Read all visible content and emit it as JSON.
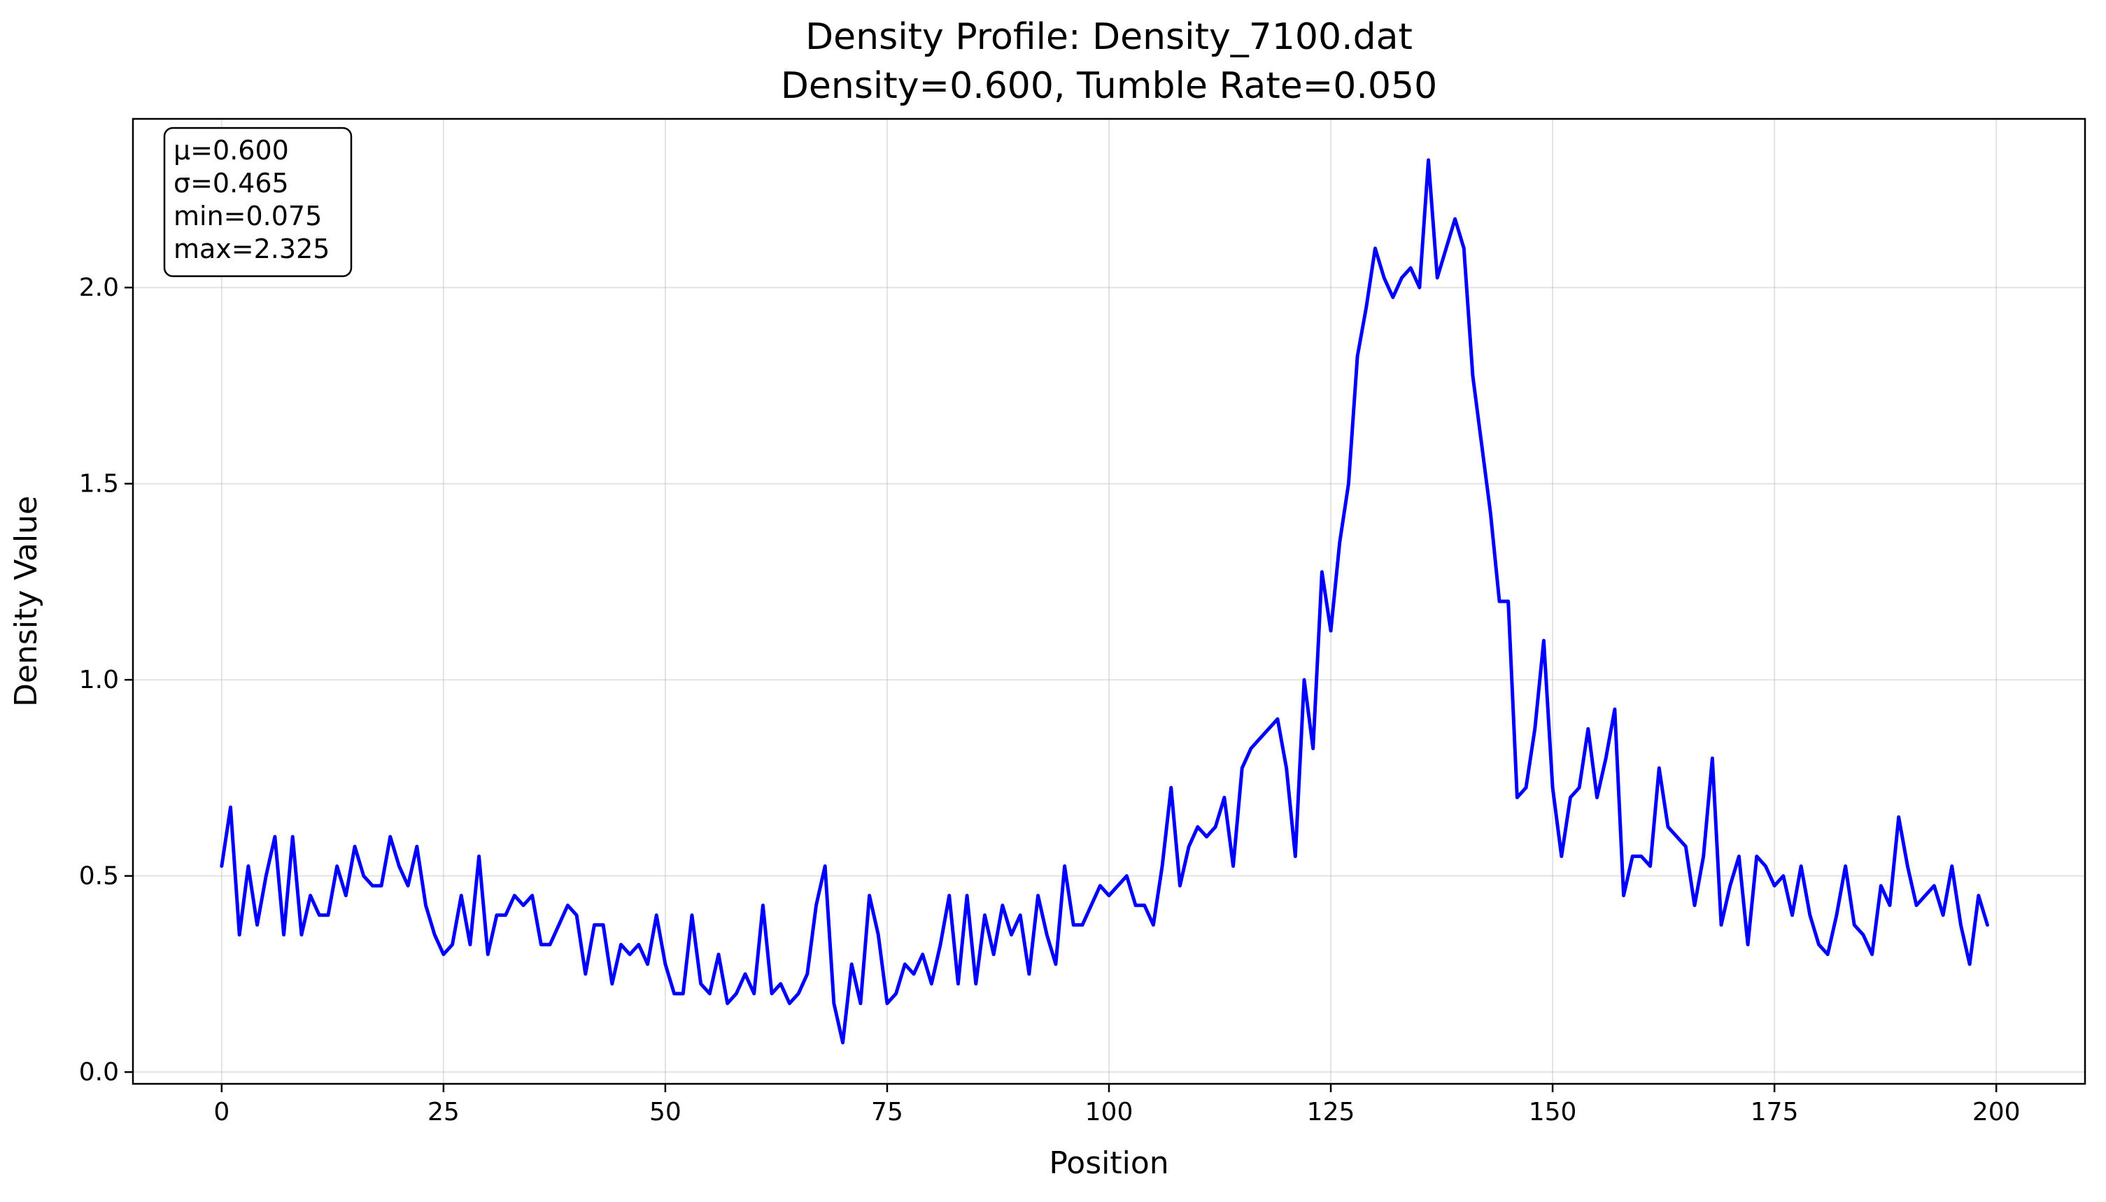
{
  "chart_data": {
    "type": "line",
    "title": "Density Profile: Density_7100.dat",
    "subtitle": "Density=0.600, Tumble Rate=0.050",
    "xlabel": "Position",
    "ylabel": "Density Value",
    "xlim": [
      -10,
      210
    ],
    "ylim": [
      -0.03,
      2.43
    ],
    "xticks": [
      0,
      25,
      50,
      75,
      100,
      125,
      150,
      175,
      200
    ],
    "yticks": [
      0.0,
      0.5,
      1.0,
      1.5,
      2.0
    ],
    "grid": true,
    "line_color": "#0000ff",
    "stats_box": {
      "position": "top-left",
      "lines": [
        "μ=0.600",
        "σ=0.465",
        "min=0.075",
        "max=2.325"
      ]
    },
    "series": [
      {
        "x_start": 0,
        "x_step": 1,
        "values": [
          0.525,
          0.675,
          0.35,
          0.525,
          0.375,
          0.5,
          0.6,
          0.35,
          0.6,
          0.35,
          0.45,
          0.4,
          0.4,
          0.525,
          0.45,
          0.575,
          0.5,
          0.475,
          0.475,
          0.6,
          0.525,
          0.475,
          0.575,
          0.425,
          0.35,
          0.3,
          0.325,
          0.45,
          0.325,
          0.55,
          0.3,
          0.4,
          0.4,
          0.45,
          0.425,
          0.45,
          0.325,
          0.325,
          0.375,
          0.425,
          0.4,
          0.25,
          0.375,
          0.375,
          0.225,
          0.325,
          0.3,
          0.325,
          0.275,
          0.4,
          0.275,
          0.2,
          0.2,
          0.4,
          0.225,
          0.2,
          0.3,
          0.175,
          0.2,
          0.25,
          0.2,
          0.425,
          0.2,
          0.225,
          0.175,
          0.2,
          0.25,
          0.425,
          0.525,
          0.175,
          0.075,
          0.275,
          0.175,
          0.45,
          0.35,
          0.175,
          0.2,
          0.275,
          0.25,
          0.3,
          0.225,
          0.325,
          0.45,
          0.225,
          0.45,
          0.225,
          0.4,
          0.3,
          0.425,
          0.35,
          0.4,
          0.25,
          0.45,
          0.35,
          0.275,
          0.525,
          0.375,
          0.375,
          0.425,
          0.475,
          0.45,
          0.475,
          0.5,
          0.425,
          0.425,
          0.375,
          0.525,
          0.725,
          0.475,
          0.575,
          0.625,
          0.6,
          0.625,
          0.7,
          0.525,
          0.775,
          0.825,
          0.85,
          0.875,
          0.9,
          0.775,
          0.55,
          1.0,
          0.825,
          1.275,
          1.125,
          1.35,
          1.5,
          1.825,
          1.95,
          2.1,
          2.025,
          1.975,
          2.025,
          2.05,
          2.0,
          2.325,
          2.025,
          2.1,
          2.175,
          2.1,
          1.775,
          1.6,
          1.425,
          1.2,
          1.2,
          0.7,
          0.725,
          0.875,
          1.1,
          0.725,
          0.55,
          0.7,
          0.725,
          0.875,
          0.7,
          0.8,
          0.925,
          0.45,
          0.55,
          0.55,
          0.525,
          0.775,
          0.625,
          0.6,
          0.575,
          0.425,
          0.55,
          0.8,
          0.375,
          0.475,
          0.55,
          0.325,
          0.55,
          0.525,
          0.475,
          0.5,
          0.4,
          0.525,
          0.4,
          0.325,
          0.3,
          0.4,
          0.525,
          0.375,
          0.35,
          0.3,
          0.475,
          0.425,
          0.65,
          0.525,
          0.425,
          0.45,
          0.475,
          0.4,
          0.525,
          0.375,
          0.275,
          0.45,
          0.375
        ]
      }
    ]
  }
}
